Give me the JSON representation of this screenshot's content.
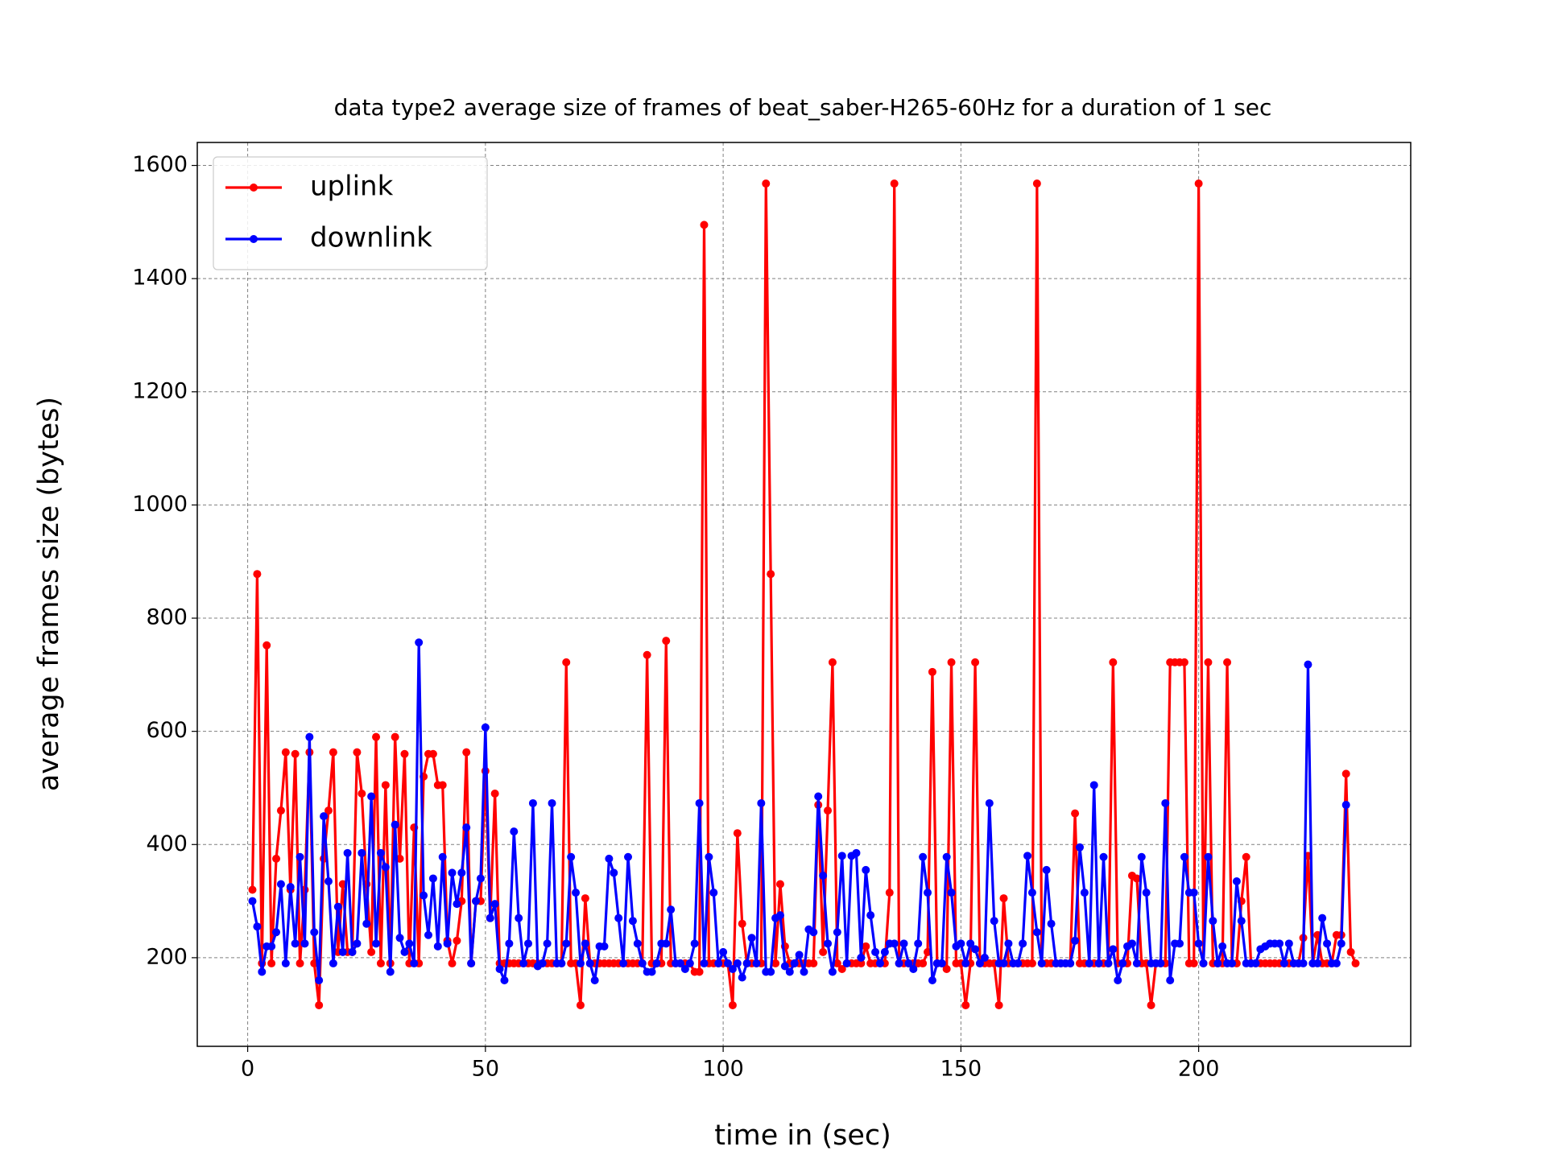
{
  "chart_data": {
    "type": "line",
    "title": "data type2 average size of frames of beat_saber-H265-60Hz for a duration of 1 sec",
    "x_label": "time in (sec)",
    "y_label": "average frames size (bytes)",
    "x": [
      1,
      2,
      3,
      4,
      5,
      6,
      7,
      8,
      9,
      10,
      11,
      12,
      13,
      14,
      15,
      16,
      17,
      18,
      19,
      20,
      21,
      22,
      23,
      24,
      25,
      26,
      27,
      28,
      29,
      30,
      31,
      32,
      33,
      34,
      35,
      36,
      37,
      38,
      39,
      40,
      41,
      42,
      43,
      44,
      45,
      46,
      47,
      48,
      49,
      50,
      51,
      52,
      53,
      54,
      55,
      56,
      57,
      58,
      59,
      60,
      61,
      62,
      63,
      64,
      65,
      66,
      67,
      68,
      69,
      70,
      71,
      72,
      73,
      74,
      75,
      76,
      77,
      78,
      79,
      80,
      81,
      82,
      83,
      84,
      85,
      86,
      87,
      88,
      89,
      90,
      91,
      92,
      93,
      94,
      95,
      96,
      97,
      98,
      99,
      100,
      101,
      102,
      103,
      104,
      105,
      106,
      107,
      108,
      109,
      110,
      111,
      112,
      113,
      114,
      115,
      116,
      117,
      118,
      119,
      120,
      121,
      122,
      123,
      124,
      125,
      126,
      127,
      128,
      129,
      130,
      131,
      132,
      133,
      134,
      135,
      136,
      137,
      138,
      139,
      140,
      141,
      142,
      143,
      144,
      145,
      146,
      147,
      148,
      149,
      150,
      151,
      152,
      153,
      154,
      155,
      156,
      157,
      158,
      159,
      160,
      161,
      162,
      163,
      164,
      165,
      166,
      167,
      168,
      169,
      170,
      171,
      172,
      173,
      174,
      175,
      176,
      177,
      178,
      179,
      180,
      181,
      182,
      183,
      184,
      185,
      186,
      187,
      188,
      189,
      190,
      191,
      192,
      193,
      194,
      195,
      196,
      197,
      198,
      199,
      200,
      201,
      202,
      203,
      204,
      205,
      206,
      207,
      208,
      209,
      210,
      211,
      212,
      213,
      214,
      215,
      216,
      217,
      218,
      219,
      220,
      221,
      222,
      223,
      224,
      225,
      226,
      227,
      228,
      229,
      230,
      231,
      232,
      233
    ],
    "series": [
      {
        "name": "uplink",
        "color": "#ff0000",
        "values": [
          320,
          878,
          190,
          752,
          190,
          375,
          460,
          563,
          320,
          560,
          190,
          320,
          563,
          190,
          116,
          375,
          460,
          563,
          210,
          330,
          210,
          210,
          563,
          490,
          330,
          210,
          590,
          190,
          505,
          190,
          590,
          375,
          560,
          190,
          430,
          190,
          520,
          560,
          560,
          505,
          505,
          230,
          190,
          230,
          300,
          563,
          190,
          300,
          300,
          530,
          270,
          490,
          190,
          190,
          190,
          190,
          190,
          190,
          190,
          190,
          190,
          190,
          190,
          190,
          190,
          190,
          722,
          190,
          190,
          116,
          305,
          190,
          190,
          190,
          190,
          190,
          190,
          190,
          190,
          190,
          190,
          190,
          190,
          735,
          190,
          190,
          190,
          760,
          190,
          190,
          190,
          190,
          190,
          175,
          175,
          1495,
          190,
          190,
          190,
          190,
          190,
          116,
          420,
          260,
          190,
          190,
          190,
          190,
          1568,
          878,
          190,
          330,
          220,
          190,
          190,
          190,
          190,
          190,
          190,
          470,
          210,
          460,
          722,
          190,
          180,
          190,
          190,
          190,
          190,
          220,
          190,
          190,
          190,
          190,
          315,
          1568,
          190,
          190,
          190,
          190,
          190,
          190,
          210,
          705,
          190,
          190,
          180,
          722,
          190,
          190,
          116,
          190,
          722,
          190,
          190,
          190,
          190,
          116,
          305,
          190,
          190,
          190,
          190,
          190,
          190,
          1568,
          190,
          190,
          190,
          190,
          190,
          190,
          190,
          455,
          190,
          190,
          190,
          190,
          190,
          190,
          190,
          722,
          190,
          190,
          190,
          345,
          340,
          190,
          190,
          116,
          190,
          190,
          190,
          722,
          722,
          722,
          722,
          190,
          190,
          1568,
          190,
          722,
          190,
          190,
          190,
          722,
          190,
          190,
          300,
          378,
          190,
          190,
          190,
          190,
          190,
          190,
          190,
          190,
          190,
          190,
          190,
          235,
          380,
          190,
          240,
          190,
          190,
          190,
          240,
          240,
          525,
          210,
          190
        ]
      },
      {
        "name": "downlink",
        "color": "#0000ff",
        "values": [
          300,
          255,
          175,
          220,
          220,
          245,
          330,
          190,
          325,
          225,
          378,
          225,
          590,
          245,
          160,
          450,
          335,
          190,
          290,
          210,
          385,
          210,
          225,
          385,
          260,
          485,
          225,
          385,
          360,
          175,
          435,
          235,
          210,
          225,
          190,
          757,
          310,
          240,
          340,
          220,
          378,
          225,
          350,
          295,
          350,
          430,
          190,
          300,
          340,
          607,
          270,
          295,
          180,
          160,
          225,
          423,
          270,
          190,
          225,
          473,
          185,
          190,
          225,
          473,
          190,
          190,
          225,
          378,
          315,
          190,
          225,
          190,
          160,
          220,
          220,
          375,
          350,
          270,
          190,
          378,
          265,
          225,
          190,
          175,
          175,
          190,
          225,
          225,
          285,
          190,
          190,
          180,
          190,
          225,
          473,
          190,
          378,
          315,
          190,
          210,
          190,
          180,
          190,
          165,
          190,
          235,
          190,
          473,
          175,
          175,
          270,
          275,
          185,
          175,
          190,
          205,
          175,
          250,
          245,
          485,
          345,
          225,
          175,
          245,
          380,
          190,
          380,
          385,
          200,
          355,
          275,
          210,
          190,
          210,
          225,
          225,
          190,
          225,
          190,
          180,
          225,
          378,
          315,
          160,
          190,
          190,
          378,
          315,
          220,
          225,
          190,
          225,
          215,
          190,
          200,
          473,
          265,
          190,
          190,
          225,
          190,
          190,
          225,
          380,
          315,
          245,
          190,
          355,
          260,
          190,
          190,
          190,
          190,
          230,
          395,
          315,
          190,
          505,
          190,
          378,
          190,
          215,
          160,
          190,
          220,
          225,
          190,
          378,
          315,
          190,
          190,
          190,
          473,
          160,
          225,
          225,
          378,
          315,
          315,
          225,
          190,
          378,
          265,
          190,
          220,
          190,
          190,
          335,
          265,
          190,
          190,
          190,
          215,
          220,
          225,
          225,
          225,
          190,
          225,
          190,
          190,
          190,
          718,
          190,
          190,
          270,
          225,
          190,
          190,
          225,
          470,
          null,
          null
        ]
      }
    ],
    "xlim": [
      -10.6,
      244.6
    ],
    "ylim": [
      43.4,
      1640.6
    ],
    "xticks": [
      0,
      50,
      100,
      150,
      200
    ],
    "yticks": [
      200,
      400,
      600,
      800,
      1000,
      1200,
      1400,
      1600
    ],
    "grid": true,
    "legend": "upper left"
  }
}
